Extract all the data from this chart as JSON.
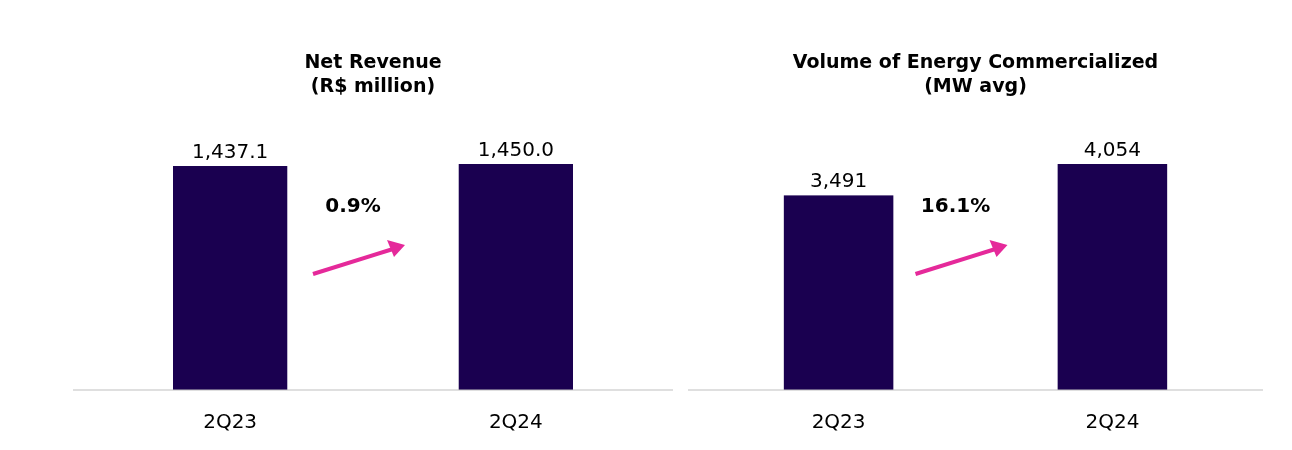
{
  "chart_data": [
    {
      "type": "bar",
      "title": "Net Revenue",
      "subtitle": "(R$ million)",
      "categories": [
        "2Q23",
        "2Q24"
      ],
      "values": [
        1437.1,
        1450.0
      ],
      "value_labels": [
        "1,437.1",
        "1,450.0"
      ],
      "color": "#1a0050",
      "annotations": [
        "0.9%"
      ]
    },
    {
      "type": "bar",
      "title": "Volume of Energy Commercialized",
      "subtitle": "(MW avg)",
      "categories": [
        "2Q23",
        "2Q24"
      ],
      "values": [
        3491,
        4054
      ],
      "value_labels": [
        "3,491",
        "4,054"
      ],
      "color": "#1a0050",
      "annotations": [
        "16.1%"
      ]
    }
  ]
}
